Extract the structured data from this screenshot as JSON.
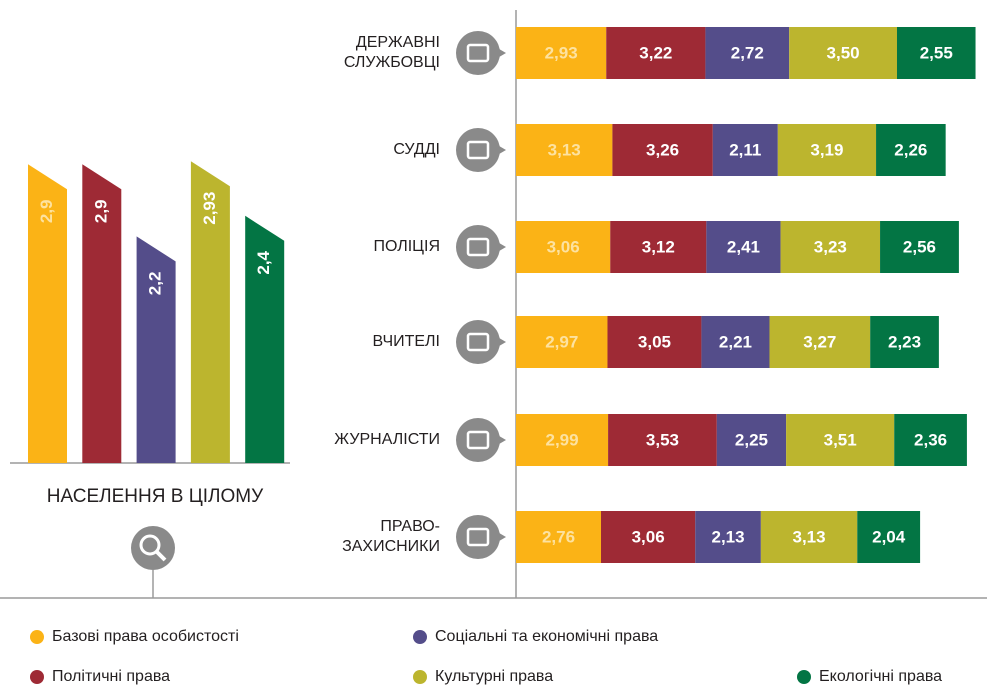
{
  "chart_data": [
    {
      "type": "bar",
      "title": "НАСЕЛЕННЯ В ЦІЛОМУ",
      "values": [
        2.9,
        2.9,
        2.2,
        2.93,
        2.4
      ],
      "value_labels": [
        "2,9",
        "2,9",
        "2,2",
        "2,93",
        "2,4"
      ],
      "colors": [
        "#fbb316",
        "#9e2a35",
        "#544d8a",
        "#bcb52e",
        "#037544"
      ]
    },
    {
      "type": "stacked_bar",
      "categories": [
        "ДЕРЖАВНІ\nСЛУЖБОВЦІ",
        "СУДДІ",
        "ПОЛІЦІЯ",
        "ВЧИТЕЛІ",
        "ЖУРНАЛІСТИ",
        "ПРАВО-\nЗАХИСНИКИ"
      ],
      "series": [
        {
          "name": "Базові права особистості",
          "color": "#fbb316",
          "values": [
            2.93,
            3.13,
            3.06,
            2.97,
            2.99,
            2.76
          ],
          "value_labels": [
            "2,93",
            "3,13",
            "3,06",
            "2,97",
            "2,99",
            "2,76"
          ]
        },
        {
          "name": "Політичні права",
          "color": "#9e2a35",
          "values": [
            3.22,
            3.26,
            3.12,
            3.05,
            3.53,
            3.06
          ],
          "value_labels": [
            "3,22",
            "3,26",
            "3,12",
            "3,05",
            "3,53",
            "3,06"
          ]
        },
        {
          "name": "Соціальні та економічні права",
          "color": "#544d8a",
          "values": [
            2.72,
            2.11,
            2.41,
            2.21,
            2.25,
            2.13
          ],
          "value_labels": [
            "2,72",
            "2,11",
            "2,41",
            "2,21",
            "2,25",
            "2,13"
          ]
        },
        {
          "name": "Культурні права",
          "color": "#bcb52e",
          "values": [
            3.5,
            3.19,
            3.23,
            3.27,
            3.51,
            3.13
          ],
          "value_labels": [
            "3,50",
            "3,19",
            "3,23",
            "3,27",
            "3,51",
            "3,13"
          ]
        },
        {
          "name": "Екологічні права",
          "color": "#037544",
          "values": [
            2.55,
            2.26,
            2.56,
            2.23,
            2.36,
            2.04
          ],
          "value_labels": [
            "2,55",
            "2,26",
            "2,56",
            "2,23",
            "2,36",
            "2,04"
          ]
        }
      ]
    }
  ]
}
